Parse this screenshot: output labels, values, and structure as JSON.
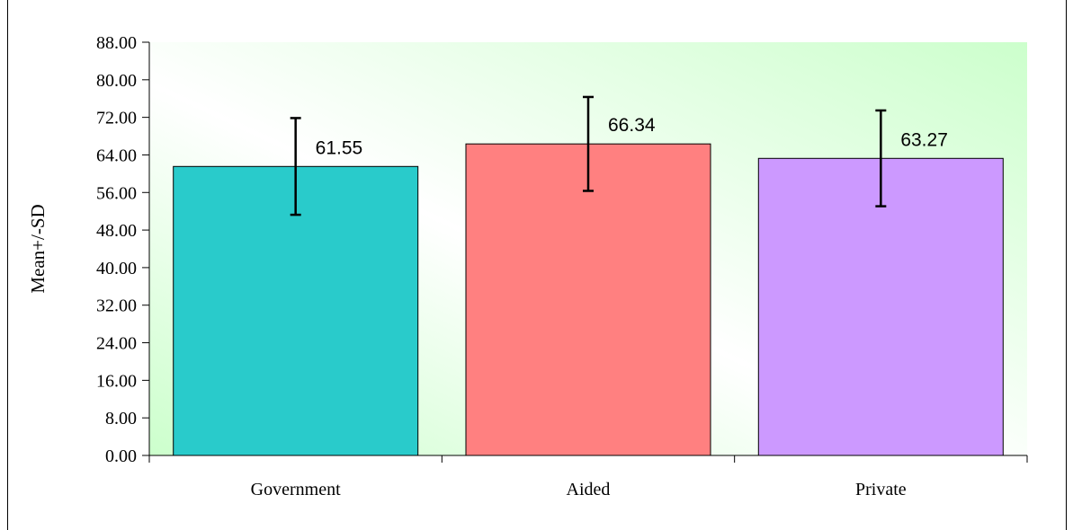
{
  "chart_data": {
    "type": "bar",
    "title": "",
    "xlabel": "",
    "ylabel": "Mean+/-SD",
    "categories": [
      "Government",
      "Aided",
      "Private"
    ],
    "values": [
      61.55,
      66.34,
      63.27
    ],
    "value_labels": [
      "61.55",
      "66.34",
      "63.27"
    ],
    "sd": [
      10.3,
      10.0,
      10.2
    ],
    "bar_colors": [
      "#29cbcb",
      "#ff8080",
      "#cc99ff"
    ],
    "ylim": [
      0,
      88
    ],
    "yticks": [
      0,
      8,
      16,
      24,
      32,
      40,
      48,
      56,
      64,
      72,
      80,
      88
    ],
    "ytick_labels": [
      "0.00",
      "8.00",
      "16.00",
      "24.00",
      "32.00",
      "40.00",
      "48.00",
      "56.00",
      "64.00",
      "72.00",
      "80.00",
      "88.00"
    ],
    "grid": false,
    "legend": "none",
    "plot_background": "gradient white to light green (#ccffcc)"
  }
}
